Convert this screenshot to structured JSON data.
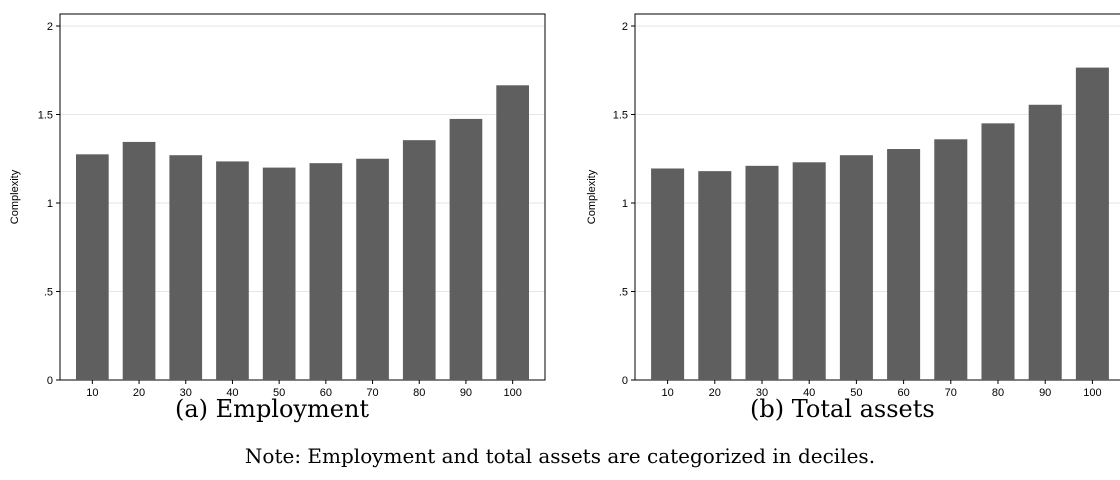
{
  "chart_data": [
    {
      "type": "bar",
      "categories": [
        "10",
        "20",
        "30",
        "40",
        "50",
        "60",
        "70",
        "80",
        "90",
        "100"
      ],
      "values": [
        1.275,
        1.345,
        1.27,
        1.235,
        1.2,
        1.225,
        1.25,
        1.355,
        1.475,
        1.665
      ],
      "ylabel": "Complexity",
      "xlabel": "",
      "ylim": [
        0,
        2
      ],
      "yticks": [
        "0",
        ".5",
        "1",
        "1.5",
        "2"
      ],
      "bar_color": "#5f5f5f",
      "grid": true,
      "caption": "(a) Employment"
    },
    {
      "type": "bar",
      "categories": [
        "10",
        "20",
        "30",
        "40",
        "50",
        "60",
        "70",
        "80",
        "90",
        "100"
      ],
      "values": [
        1.195,
        1.18,
        1.21,
        1.23,
        1.27,
        1.305,
        1.36,
        1.45,
        1.555,
        1.765
      ],
      "ylabel": "Complexity",
      "xlabel": "",
      "ylim": [
        0,
        2
      ],
      "yticks": [
        "0",
        ".5",
        "1",
        "1.5",
        "2"
      ],
      "bar_color": "#5f5f5f",
      "grid": true,
      "caption": "(b) Total assets"
    }
  ],
  "note": "Note: Employment and total assets are categorized in deciles."
}
